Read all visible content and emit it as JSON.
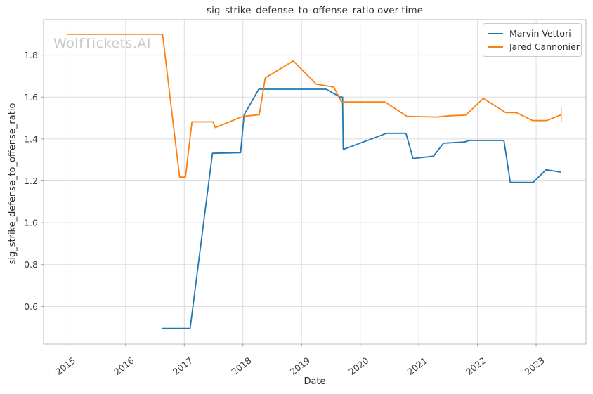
{
  "watermark": {
    "text": "WolfTickets.AI",
    "color": "#c9c9c9"
  },
  "chart_data": {
    "type": "line",
    "title": "sig_strike_defense_to_offense_ratio over time",
    "xlabel": "Date",
    "ylabel": "sig_strike_defense_to_offense_ratio",
    "x_ticks": [
      2015,
      2016,
      2017,
      2018,
      2019,
      2020,
      2021,
      2022,
      2023
    ],
    "y_ticks": [
      0.6,
      0.8,
      1.0,
      1.2,
      1.4,
      1.6,
      1.8
    ],
    "xlim": [
      2014.6,
      2023.85
    ],
    "ylim": [
      0.42,
      1.97
    ],
    "grid": true,
    "legend_position": "upper right",
    "style": {
      "grid_color": "#dcdcdc",
      "spine_color": "#c6c6c6",
      "tick_color": "#a0a0a0",
      "text_color": "#3a3a3a",
      "background": "#ffffff"
    },
    "series": [
      {
        "name": "Marvin Vettori",
        "color": "#1f77b4",
        "points": [
          [
            2016.62,
            0.495
          ],
          [
            2017.1,
            0.495
          ],
          [
            2017.48,
            1.332
          ],
          [
            2017.96,
            1.335
          ],
          [
            2018.02,
            1.515
          ],
          [
            2018.27,
            1.638
          ],
          [
            2019.42,
            1.638
          ],
          [
            2019.66,
            1.6
          ],
          [
            2019.7,
            1.6
          ],
          [
            2019.71,
            1.35
          ],
          [
            2020.45,
            1.427
          ],
          [
            2020.78,
            1.427
          ],
          [
            2020.9,
            1.307
          ],
          [
            2021.25,
            1.318
          ],
          [
            2021.42,
            1.38
          ],
          [
            2021.78,
            1.386
          ],
          [
            2021.86,
            1.393
          ],
          [
            2022.45,
            1.393
          ],
          [
            2022.56,
            1.193
          ],
          [
            2022.95,
            1.193
          ],
          [
            2023.17,
            1.253
          ],
          [
            2023.42,
            1.242
          ]
        ]
      },
      {
        "name": "Jared Cannonier",
        "color": "#ff7f0e",
        "points": [
          [
            2015.0,
            1.9
          ],
          [
            2016.63,
            1.9
          ],
          [
            2016.92,
            1.218
          ],
          [
            2017.02,
            1.218
          ],
          [
            2017.13,
            1.482
          ],
          [
            2017.49,
            1.482
          ],
          [
            2017.53,
            1.455
          ],
          [
            2018.0,
            1.508
          ],
          [
            2018.28,
            1.516
          ],
          [
            2018.38,
            1.692
          ],
          [
            2018.86,
            1.773
          ],
          [
            2019.25,
            1.662
          ],
          [
            2019.55,
            1.648
          ],
          [
            2019.68,
            1.577
          ],
          [
            2020.42,
            1.577
          ],
          [
            2020.8,
            1.508
          ],
          [
            2021.3,
            1.505
          ],
          [
            2021.53,
            1.511
          ],
          [
            2021.8,
            1.514
          ],
          [
            2022.1,
            1.594
          ],
          [
            2022.48,
            1.526
          ],
          [
            2022.66,
            1.526
          ],
          [
            2022.94,
            1.488
          ],
          [
            2023.18,
            1.488
          ],
          [
            2023.42,
            1.515
          ]
        ],
        "end_error_bar": {
          "x": 2023.42,
          "from": 1.478,
          "to": 1.55
        }
      }
    ]
  }
}
